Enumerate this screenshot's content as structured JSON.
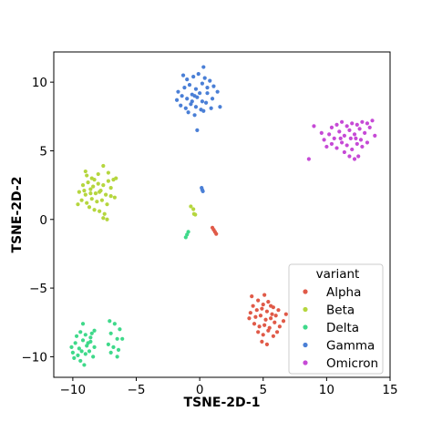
{
  "chart_data": {
    "type": "scatter",
    "title": "",
    "xlabel": "TSNE-2D-1",
    "ylabel": "TSNE-2D-2",
    "xlim": [
      -11.5,
      15
    ],
    "ylim": [
      -11.5,
      12.2
    ],
    "xticks": [
      -10,
      -5,
      0,
      5,
      10,
      15
    ],
    "yticks": [
      -10,
      -5,
      0,
      5,
      10
    ],
    "xtick_labels": [
      "−10",
      "−5",
      "0",
      "5",
      "10",
      "15"
    ],
    "ytick_labels": [
      "−10",
      "−5",
      "0",
      "5",
      "10"
    ],
    "grid": false,
    "legend": {
      "title": "variant",
      "placement": "bottom-right"
    },
    "series": [
      {
        "name": "Alpha",
        "color": "#e05a48",
        "points": [
          [
            4.2,
            -6.3
          ],
          [
            4.6,
            -5.9
          ],
          [
            5.0,
            -6.2
          ],
          [
            5.4,
            -6.0
          ],
          [
            5.8,
            -6.4
          ],
          [
            4.0,
            -6.8
          ],
          [
            4.5,
            -6.6
          ],
          [
            4.9,
            -6.5
          ],
          [
            5.3,
            -6.7
          ],
          [
            5.7,
            -6.9
          ],
          [
            6.2,
            -6.6
          ],
          [
            3.9,
            -7.2
          ],
          [
            4.4,
            -7.1
          ],
          [
            4.8,
            -7.0
          ],
          [
            5.2,
            -7.3
          ],
          [
            5.6,
            -7.2
          ],
          [
            6.0,
            -7.0
          ],
          [
            6.6,
            -7.4
          ],
          [
            4.3,
            -7.6
          ],
          [
            4.7,
            -7.8
          ],
          [
            5.1,
            -7.7
          ],
          [
            5.5,
            -7.9
          ],
          [
            5.9,
            -7.5
          ],
          [
            6.3,
            -7.8
          ],
          [
            4.6,
            -8.2
          ],
          [
            5.0,
            -8.4
          ],
          [
            5.4,
            -8.1
          ],
          [
            5.8,
            -8.5
          ],
          [
            4.9,
            -8.9
          ],
          [
            5.3,
            -9.1
          ],
          [
            6.8,
            -6.9
          ],
          [
            4.1,
            -5.6
          ],
          [
            5.1,
            -5.5
          ],
          [
            6.1,
            -8.2
          ],
          [
            5.6,
            -6.3
          ],
          [
            1.0,
            -0.6
          ],
          [
            1.1,
            -0.75
          ],
          [
            1.2,
            -0.9
          ],
          [
            1.3,
            -1.05
          ]
        ]
      },
      {
        "name": "Beta",
        "color": "#b5d63e",
        "points": [
          [
            -9.5,
            2.0
          ],
          [
            -9.0,
            1.8
          ],
          [
            -8.6,
            2.2
          ],
          [
            -8.2,
            1.9
          ],
          [
            -7.8,
            2.1
          ],
          [
            -7.4,
            1.8
          ],
          [
            -7.0,
            2.3
          ],
          [
            -9.2,
            2.5
          ],
          [
            -8.8,
            2.7
          ],
          [
            -8.4,
            2.4
          ],
          [
            -8.0,
            2.6
          ],
          [
            -7.6,
            2.5
          ],
          [
            -7.2,
            2.8
          ],
          [
            -6.8,
            2.9
          ],
          [
            -9.3,
            1.4
          ],
          [
            -8.9,
            1.2
          ],
          [
            -8.5,
            1.5
          ],
          [
            -8.1,
            1.3
          ],
          [
            -7.7,
            1.4
          ],
          [
            -7.3,
            1.1
          ],
          [
            -8.7,
            0.9
          ],
          [
            -8.3,
            0.7
          ],
          [
            -7.9,
            0.6
          ],
          [
            -7.5,
            0.4
          ],
          [
            -7.6,
            0.1
          ],
          [
            -7.3,
            0.0
          ],
          [
            -8.9,
            3.2
          ],
          [
            -8.5,
            3.0
          ],
          [
            -8.0,
            3.3
          ],
          [
            -7.6,
            3.9
          ],
          [
            -7.2,
            3.4
          ],
          [
            -9.0,
            3.5
          ],
          [
            -6.6,
            3.0
          ],
          [
            -6.7,
            1.6
          ],
          [
            -9.6,
            1.1
          ],
          [
            -8.6,
            1.9
          ],
          [
            -7.9,
            2.0
          ],
          [
            -8.3,
            2.9
          ],
          [
            -7.0,
            1.7
          ],
          [
            -9.1,
            2.1
          ],
          [
            -0.7,
            0.95
          ],
          [
            -0.5,
            0.75
          ],
          [
            -0.45,
            0.4
          ],
          [
            -0.35,
            0.35
          ]
        ]
      },
      {
        "name": "Delta",
        "color": "#3fd98a",
        "points": [
          [
            -10.1,
            -9.3
          ],
          [
            -9.8,
            -9.0
          ],
          [
            -9.5,
            -9.4
          ],
          [
            -9.2,
            -8.8
          ],
          [
            -8.9,
            -9.2
          ],
          [
            -8.6,
            -8.9
          ],
          [
            -8.3,
            -9.3
          ],
          [
            -10.0,
            -9.7
          ],
          [
            -9.6,
            -9.9
          ],
          [
            -9.3,
            -9.6
          ],
          [
            -9.0,
            -9.8
          ],
          [
            -8.7,
            -9.6
          ],
          [
            -8.4,
            -10.0
          ],
          [
            -9.4,
            -10.3
          ],
          [
            -9.1,
            -10.6
          ],
          [
            -9.7,
            -8.5
          ],
          [
            -9.4,
            -8.2
          ],
          [
            -9.0,
            -8.4
          ],
          [
            -8.6,
            -8.6
          ],
          [
            -8.3,
            -8.1
          ],
          [
            -9.2,
            -7.6
          ],
          [
            -8.5,
            -8.3
          ],
          [
            -8.8,
            -9.0
          ],
          [
            -9.9,
            -10.1
          ],
          [
            -7.1,
            -7.4
          ],
          [
            -6.7,
            -7.6
          ],
          [
            -6.3,
            -8.0
          ],
          [
            -7.0,
            -8.3
          ],
          [
            -6.5,
            -8.7
          ],
          [
            -6.1,
            -8.7
          ],
          [
            -7.2,
            -9.1
          ],
          [
            -6.8,
            -9.3
          ],
          [
            -6.4,
            -9.5
          ],
          [
            -7.0,
            -9.7
          ],
          [
            -6.5,
            -10.0
          ],
          [
            -1.1,
            -1.3
          ],
          [
            -1.0,
            -1.1
          ],
          [
            -0.9,
            -0.9
          ]
        ]
      },
      {
        "name": "Gamma",
        "color": "#4a7fd6",
        "points": [
          [
            -1.8,
            8.7
          ],
          [
            -1.4,
            9.0
          ],
          [
            -1.0,
            8.8
          ],
          [
            -0.6,
            9.1
          ],
          [
            -0.2,
            8.9
          ],
          [
            0.2,
            8.6
          ],
          [
            0.6,
            9.2
          ],
          [
            1.0,
            8.8
          ],
          [
            1.4,
            9.3
          ],
          [
            -1.5,
            8.3
          ],
          [
            -1.1,
            8.1
          ],
          [
            -0.7,
            8.4
          ],
          [
            -0.3,
            8.2
          ],
          [
            0.1,
            8.0
          ],
          [
            0.5,
            8.5
          ],
          [
            0.9,
            8.1
          ],
          [
            -0.9,
            7.8
          ],
          [
            -0.4,
            7.6
          ],
          [
            0.3,
            7.9
          ],
          [
            -1.2,
            9.6
          ],
          [
            -0.8,
            9.8
          ],
          [
            -0.3,
            9.5
          ],
          [
            0.2,
            9.9
          ],
          [
            0.6,
            9.6
          ],
          [
            -1.0,
            10.2
          ],
          [
            -0.5,
            10.4
          ],
          [
            -0.1,
            10.6
          ],
          [
            0.4,
            10.3
          ],
          [
            -1.3,
            10.5
          ],
          [
            0.3,
            11.1
          ],
          [
            -0.2,
            6.5
          ],
          [
            1.6,
            8.2
          ],
          [
            1.1,
            9.7
          ],
          [
            -1.7,
            9.3
          ],
          [
            -0.6,
            8.6
          ],
          [
            0.0,
            9.2
          ],
          [
            0.8,
            10.1
          ],
          [
            -0.4,
            9.0
          ],
          [
            0.15,
            2.3
          ],
          [
            0.2,
            2.15
          ],
          [
            0.25,
            2.05
          ]
        ]
      },
      {
        "name": "Omicron",
        "color": "#c64ad6",
        "points": [
          [
            8.6,
            4.4
          ],
          [
            9.8,
            5.8
          ],
          [
            10.2,
            6.2
          ],
          [
            10.6,
            5.9
          ],
          [
            11.0,
            6.4
          ],
          [
            11.4,
            6.1
          ],
          [
            11.8,
            6.5
          ],
          [
            12.2,
            6.2
          ],
          [
            12.6,
            6.6
          ],
          [
            13.0,
            6.3
          ],
          [
            13.4,
            6.7
          ],
          [
            10.4,
            6.7
          ],
          [
            10.8,
            6.9
          ],
          [
            11.2,
            7.1
          ],
          [
            11.6,
            6.8
          ],
          [
            12.0,
            7.0
          ],
          [
            12.4,
            6.9
          ],
          [
            12.8,
            7.1
          ],
          [
            13.2,
            7.0
          ],
          [
            13.6,
            7.2
          ],
          [
            10.0,
            5.3
          ],
          [
            10.4,
            5.5
          ],
          [
            10.8,
            5.2
          ],
          [
            11.2,
            5.6
          ],
          [
            11.6,
            5.4
          ],
          [
            12.0,
            5.1
          ],
          [
            12.4,
            5.5
          ],
          [
            12.8,
            5.3
          ],
          [
            13.2,
            5.6
          ],
          [
            11.4,
            4.9
          ],
          [
            11.8,
            4.6
          ],
          [
            12.2,
            4.4
          ],
          [
            12.5,
            4.6
          ],
          [
            9.0,
            6.8
          ],
          [
            9.6,
            6.3
          ],
          [
            11.9,
            5.9
          ],
          [
            12.7,
            5.8
          ],
          [
            13.8,
            6.1
          ],
          [
            11.1,
            5.9
          ],
          [
            12.3,
            5.9
          ]
        ]
      }
    ]
  }
}
